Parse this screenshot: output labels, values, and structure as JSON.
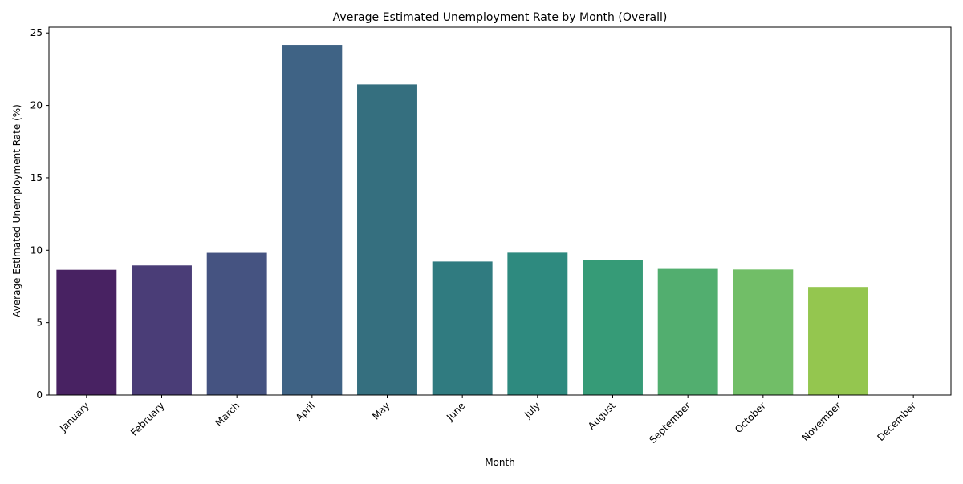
{
  "chart_data": {
    "type": "bar",
    "title": "Average Estimated Unemployment Rate by Month (Overall)",
    "xlabel": "Month",
    "ylabel": "Average Estimated Unemployment Rate (%)",
    "categories": [
      "January",
      "February",
      "March",
      "April",
      "May",
      "June",
      "July",
      "August",
      "September",
      "October",
      "November",
      "December"
    ],
    "values": [
      8.65,
      8.95,
      9.82,
      24.18,
      21.45,
      9.22,
      9.83,
      9.34,
      8.71,
      8.67,
      7.46,
      0
    ],
    "colors": [
      "#482262",
      "#4a3d77",
      "#455381",
      "#3f6385",
      "#356f7f",
      "#307b80",
      "#2e8a7f",
      "#369b77",
      "#52ae6f",
      "#71be67",
      "#94c64f",
      "#c1d33b"
    ],
    "ylim": [
      0,
      25.4
    ],
    "yticks": [
      0,
      5,
      10,
      15,
      20,
      25
    ],
    "grid": false,
    "legend": "none"
  }
}
